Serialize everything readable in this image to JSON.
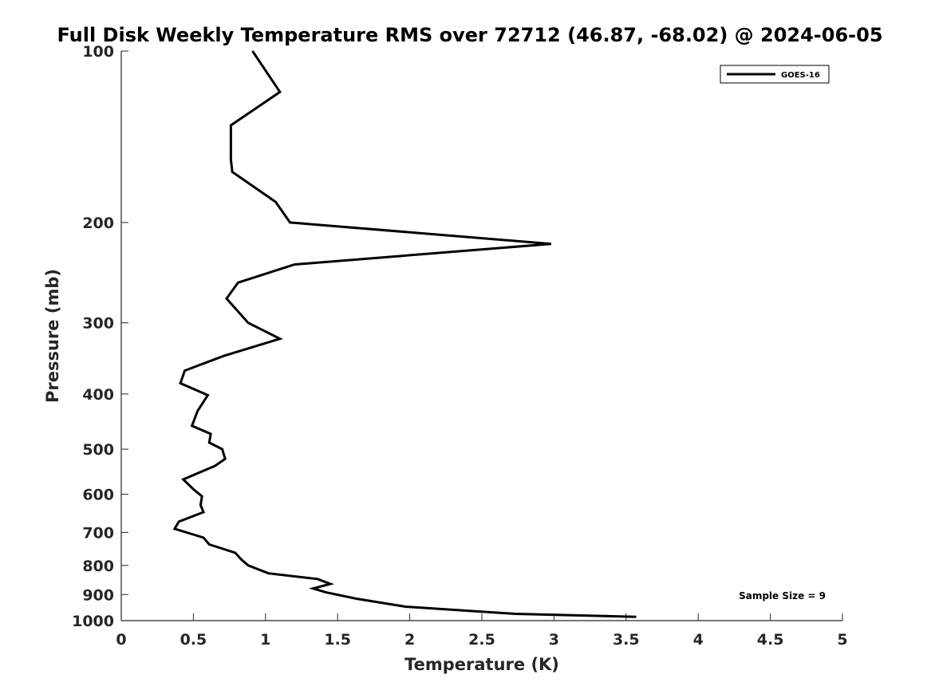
{
  "chart_data": {
    "type": "line",
    "title": "Full Disk Weekly Temperature RMS over 72712 (46.87, -68.02) @ 2024-06-05",
    "xlabel": "Temperature (K)",
    "ylabel": "Pressure (mb)",
    "xlim": [
      0,
      5
    ],
    "ylim": [
      100,
      1000
    ],
    "y_scale": "log",
    "y_reversed": true,
    "grid": false,
    "legend_position": "top-right",
    "x_ticks": [
      {
        "v": 0,
        "label": "0"
      },
      {
        "v": 0.5,
        "label": "0.5"
      },
      {
        "v": 1,
        "label": "1"
      },
      {
        "v": 1.5,
        "label": "1.5"
      },
      {
        "v": 2,
        "label": "2"
      },
      {
        "v": 2.5,
        "label": "2.5"
      },
      {
        "v": 3,
        "label": "3"
      },
      {
        "v": 3.5,
        "label": "3.5"
      },
      {
        "v": 4,
        "label": "4"
      },
      {
        "v": 4.5,
        "label": "4.5"
      },
      {
        "v": 5,
        "label": "5"
      }
    ],
    "y_ticks": [
      {
        "v": 100,
        "label": "100"
      },
      {
        "v": 200,
        "label": "200"
      },
      {
        "v": 300,
        "label": "300"
      },
      {
        "v": 400,
        "label": "400"
      },
      {
        "v": 500,
        "label": "500"
      },
      {
        "v": 600,
        "label": "600"
      },
      {
        "v": 700,
        "label": "700"
      },
      {
        "v": 800,
        "label": "800"
      },
      {
        "v": 900,
        "label": "900"
      },
      {
        "v": 1000,
        "label": "1000"
      }
    ],
    "series": [
      {
        "name": "GOES-16",
        "color": "#000000",
        "points": [
          [
            0.91,
            100
          ],
          [
            1.1,
            118
          ],
          [
            0.76,
            135
          ],
          [
            0.76,
            155
          ],
          [
            0.77,
            163
          ],
          [
            1.07,
            184
          ],
          [
            1.17,
            200
          ],
          [
            2.98,
            218
          ],
          [
            1.2,
            237
          ],
          [
            0.81,
            255
          ],
          [
            0.73,
            272
          ],
          [
            0.88,
            300
          ],
          [
            1.1,
            320
          ],
          [
            0.71,
            343
          ],
          [
            0.44,
            364
          ],
          [
            0.41,
            383
          ],
          [
            0.6,
            402
          ],
          [
            0.53,
            428
          ],
          [
            0.49,
            455
          ],
          [
            0.62,
            470
          ],
          [
            0.61,
            487
          ],
          [
            0.7,
            500
          ],
          [
            0.72,
            520
          ],
          [
            0.65,
            535
          ],
          [
            0.43,
            565
          ],
          [
            0.5,
            588
          ],
          [
            0.56,
            605
          ],
          [
            0.55,
            627
          ],
          [
            0.57,
            645
          ],
          [
            0.4,
            670
          ],
          [
            0.37,
            690
          ],
          [
            0.57,
            715
          ],
          [
            0.61,
            735
          ],
          [
            0.79,
            760
          ],
          [
            0.83,
            780
          ],
          [
            0.88,
            800
          ],
          [
            1.02,
            826
          ],
          [
            1.36,
            845
          ],
          [
            1.45,
            862
          ],
          [
            1.33,
            878
          ],
          [
            1.42,
            892
          ],
          [
            1.63,
            915
          ],
          [
            1.97,
            945
          ],
          [
            2.73,
            973
          ],
          [
            3.57,
            985
          ]
        ]
      }
    ],
    "annotations": [
      {
        "text": "Sample Size = 9"
      }
    ]
  }
}
